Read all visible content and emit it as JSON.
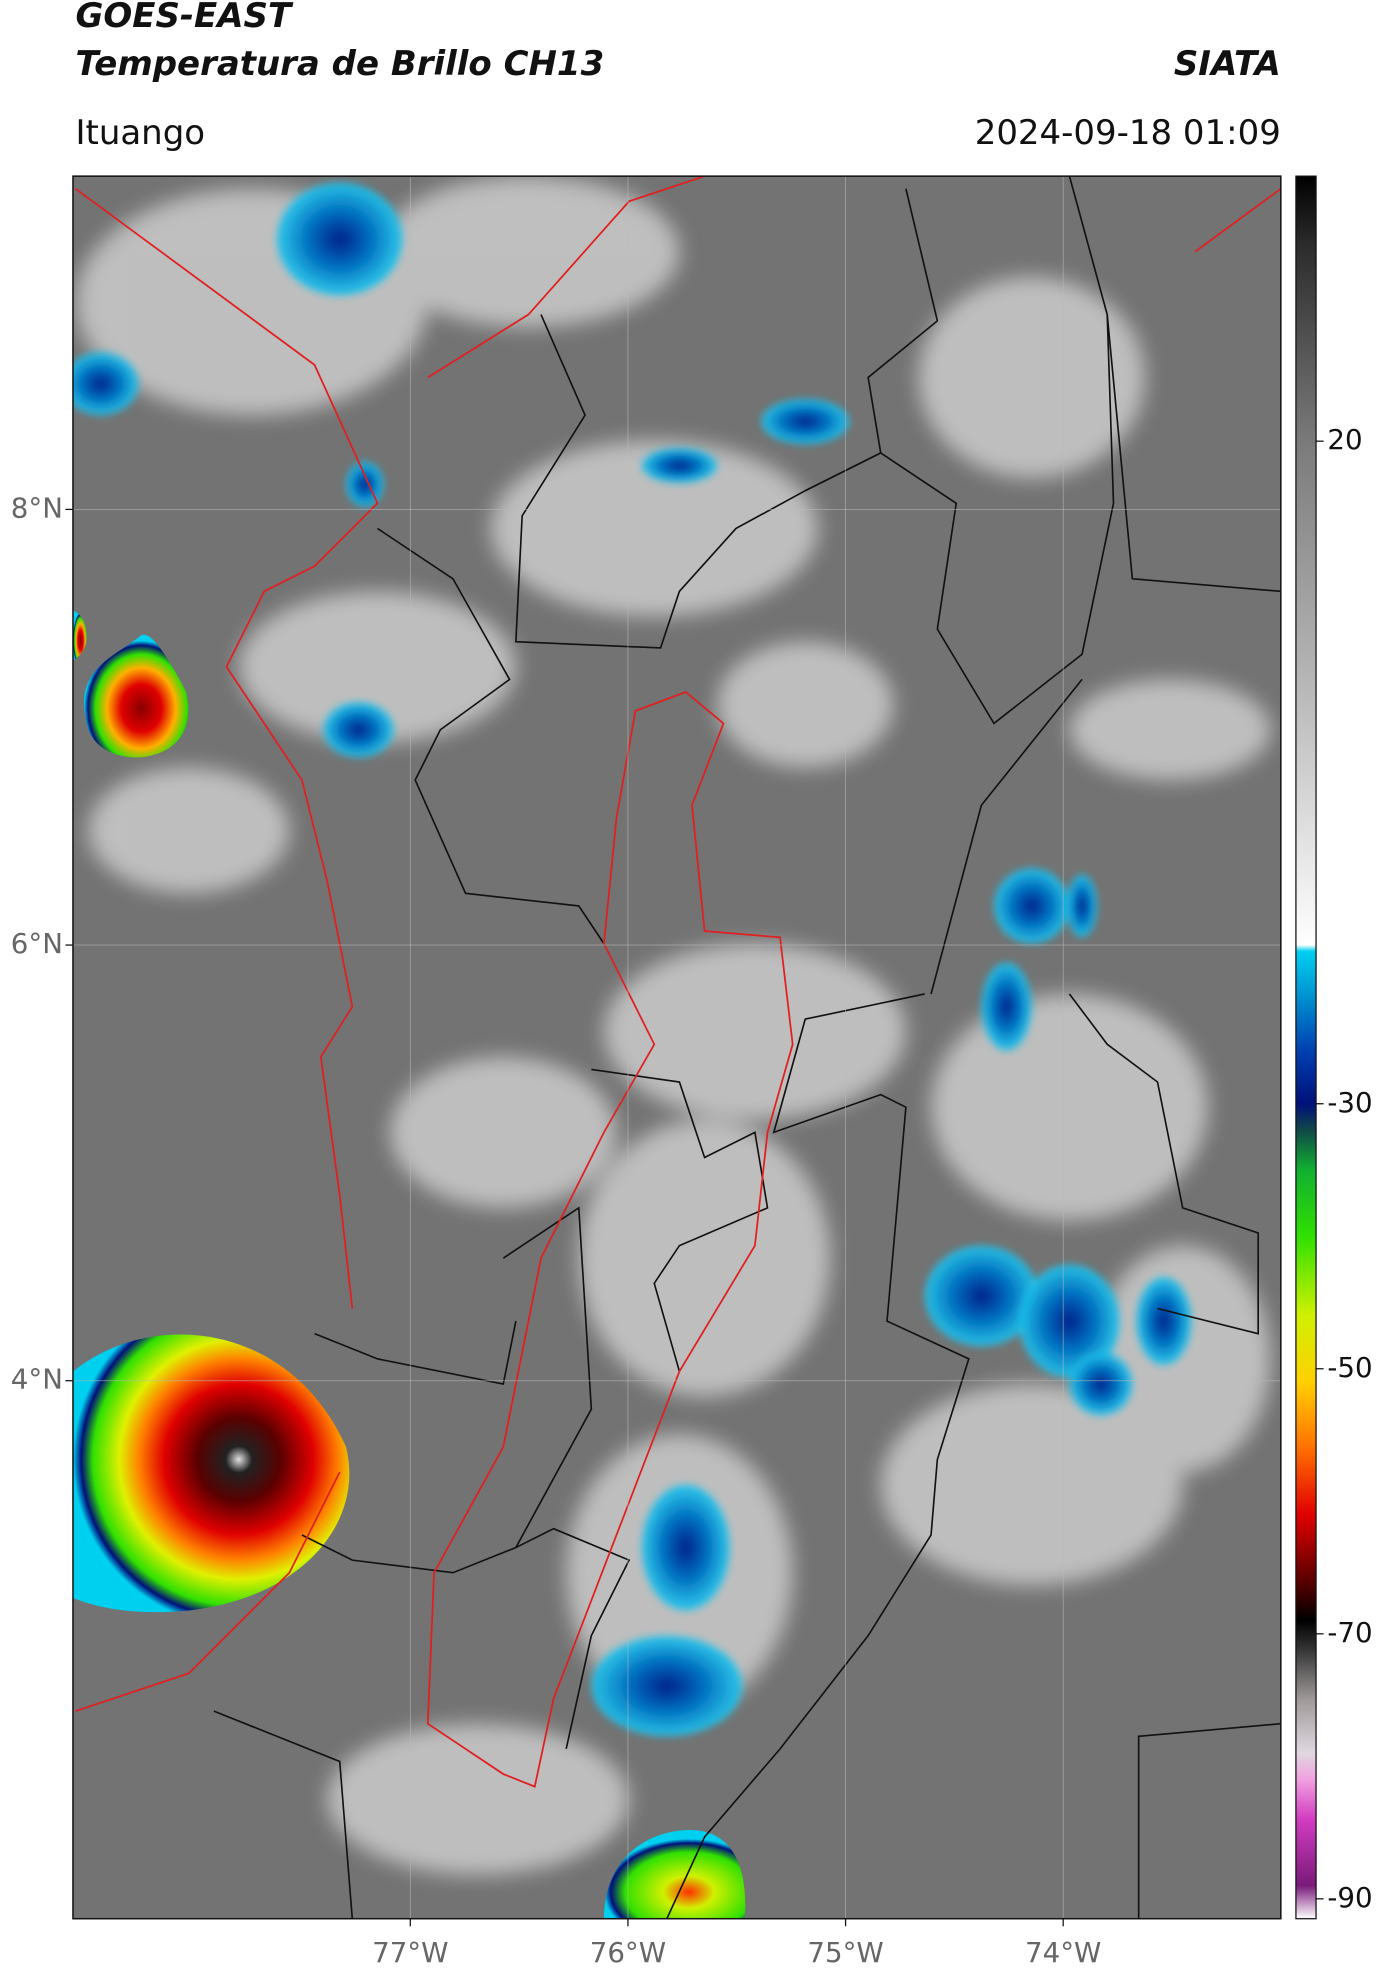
{
  "header": {
    "title": "GOES-EAST",
    "subtitle": "Temperatura de Brillo CH13",
    "organization": "SIATA",
    "location": "Ituango",
    "datetime": "2024-09-18 01:09"
  },
  "map": {
    "xlim": [
      -78.55,
      -73.0
    ],
    "ylim": [
      1.53,
      9.53
    ],
    "grid": true,
    "xticks": [
      {
        "value": -77,
        "label": "77°W"
      },
      {
        "value": -76,
        "label": "76°W"
      },
      {
        "value": -75,
        "label": "75°W"
      },
      {
        "value": -74,
        "label": "74°W"
      }
    ],
    "yticks": [
      {
        "value": 8,
        "label": "8°N"
      },
      {
        "value": 6,
        "label": "6°N"
      },
      {
        "value": 4,
        "label": "4°N"
      }
    ]
  },
  "colorbar": {
    "lim": [
      -91.5,
      40
    ],
    "ticks": [
      20,
      -30,
      -50,
      -70,
      -90
    ],
    "stops": [
      {
        "value": -91.5,
        "color": "#ffffff"
      },
      {
        "value": -89,
        "color": "#7a1a7a"
      },
      {
        "value": -84,
        "color": "#d23cc0"
      },
      {
        "value": -81,
        "color": "#f0a0e0"
      },
      {
        "value": -79,
        "color": "#e0d8e0"
      },
      {
        "value": -75,
        "color": "#a09a9a"
      },
      {
        "value": -71,
        "color": "#303030"
      },
      {
        "value": -69,
        "color": "#000000"
      },
      {
        "value": -66,
        "color": "#5a0000"
      },
      {
        "value": -61,
        "color": "#e00000"
      },
      {
        "value": -56,
        "color": "#ff7000"
      },
      {
        "value": -51,
        "color": "#ffd000"
      },
      {
        "value": -46,
        "color": "#d0f000"
      },
      {
        "value": -40,
        "color": "#30e000"
      },
      {
        "value": -35,
        "color": "#10b030"
      },
      {
        "value": -32,
        "color": "#104848"
      },
      {
        "value": -30,
        "color": "#00107a"
      },
      {
        "value": -26,
        "color": "#0040b0"
      },
      {
        "value": -22,
        "color": "#0090d0"
      },
      {
        "value": -18.5,
        "color": "#00d0f0"
      },
      {
        "value": -18,
        "color": "#ffffff"
      },
      {
        "value": 0,
        "color": "#bdbdbd"
      },
      {
        "value": 20,
        "color": "#7a7a7a"
      },
      {
        "value": 35,
        "color": "#2a2a2a"
      },
      {
        "value": 40,
        "color": "#000000"
      }
    ]
  }
}
